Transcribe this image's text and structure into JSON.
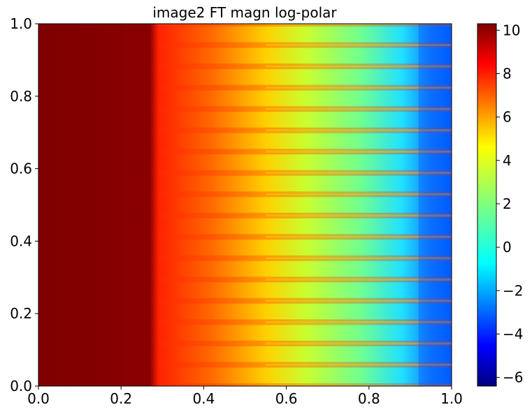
{
  "chart_data": {
    "type": "heatmap",
    "title": "image2 FT magn log-polar",
    "xlabel": "",
    "ylabel": "",
    "xlim": [
      0.0,
      1.0
    ],
    "ylim": [
      0.0,
      1.0
    ],
    "x_ticks": [
      "0.0",
      "0.2",
      "0.4",
      "0.6",
      "0.8",
      "1.0"
    ],
    "y_ticks": [
      "0.0",
      "0.2",
      "0.4",
      "0.6",
      "0.8",
      "1.0"
    ],
    "colormap": "jet",
    "colorbar": {
      "vmin": -6.4,
      "vmax": 10.3,
      "ticks": [
        "−6",
        "−4",
        "−2",
        "0",
        "2",
        "4",
        "6",
        "8",
        "10"
      ],
      "tick_values": [
        -6,
        -4,
        -2,
        0,
        2,
        4,
        6,
        8,
        10
      ]
    },
    "grid": false,
    "value_profile": {
      "description_x": [
        0.0,
        0.1,
        0.2,
        0.27,
        0.3,
        0.4,
        0.5,
        0.6,
        0.7,
        0.8,
        0.9,
        1.0
      ],
      "typical_value": [
        10.2,
        10.2,
        10.0,
        9.8,
        8.5,
        7.5,
        5.5,
        3.5,
        2.5,
        1.5,
        0.0,
        -1.5
      ]
    }
  },
  "colors": {
    "jet_stops": [
      "#00007f",
      "#0000ff",
      "#007fff",
      "#00ffff",
      "#7fff7f",
      "#ffff00",
      "#ff7f00",
      "#ff0000",
      "#7f0000"
    ]
  }
}
